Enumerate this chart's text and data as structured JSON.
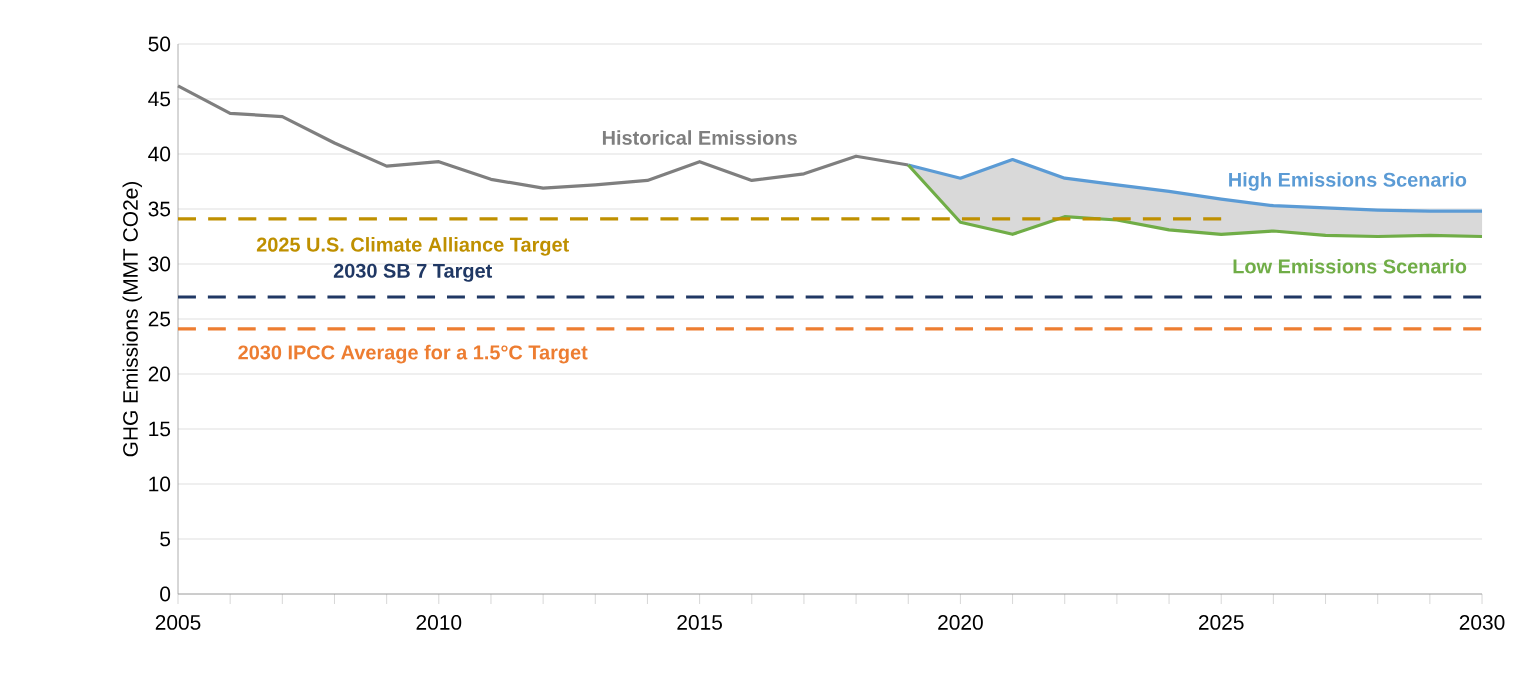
{
  "chart_data": {
    "type": "line",
    "ylabel": "GHG Emissions (MMT CO2e)",
    "xlim": [
      2005,
      2030
    ],
    "ylim": [
      0,
      50
    ],
    "xticks": [
      2005,
      {
        "value": 2006,
        "label": null
      },
      {
        "value": 2007,
        "label": null
      },
      {
        "value": 2008,
        "label": null
      },
      {
        "value": 2009,
        "label": null
      },
      2010,
      {
        "value": 2011,
        "label": null
      },
      {
        "value": 2012,
        "label": null
      },
      {
        "value": 2013,
        "label": null
      },
      {
        "value": 2014,
        "label": null
      },
      2015,
      {
        "value": 2016,
        "label": null
      },
      {
        "value": 2017,
        "label": null
      },
      {
        "value": 2018,
        "label": null
      },
      {
        "value": 2019,
        "label": null
      },
      2020,
      {
        "value": 2021,
        "label": null
      },
      {
        "value": 2022,
        "label": null
      },
      {
        "value": 2023,
        "label": null
      },
      {
        "value": 2024,
        "label": null
      },
      2025,
      {
        "value": 2026,
        "label": null
      },
      {
        "value": 2027,
        "label": null
      },
      {
        "value": 2028,
        "label": null
      },
      {
        "value": 2029,
        "label": null
      },
      2030
    ],
    "yticks": [
      0,
      5,
      10,
      15,
      20,
      25,
      30,
      35,
      40,
      45,
      50
    ],
    "grid": "y",
    "legend": false,
    "marker": "none",
    "series": [
      {
        "name": "Historical Emissions",
        "color": "#7f7f7f",
        "x": [
          2005,
          2006,
          2007,
          2008,
          2009,
          2010,
          2011,
          2012,
          2013,
          2014,
          2015,
          2016,
          2017,
          2018,
          2019
        ],
        "values": [
          46.2,
          43.7,
          43.4,
          41.0,
          38.9,
          39.3,
          37.7,
          36.9,
          37.2,
          37.6,
          39.3,
          37.6,
          38.2,
          39.8,
          39.0
        ]
      },
      {
        "name": "High Emissions Scenario",
        "color": "#5b9bd5",
        "x": [
          2019,
          2020,
          2021,
          2022,
          2023,
          2024,
          2025,
          2026,
          2027,
          2028,
          2029,
          2030
        ],
        "values": [
          39.0,
          37.8,
          39.5,
          37.8,
          37.2,
          36.6,
          35.9,
          35.3,
          35.1,
          34.9,
          34.8,
          34.8
        ],
        "lower": [
          39.0,
          33.8,
          32.7,
          34.3,
          34.0,
          33.1,
          32.7,
          33.0,
          32.6,
          32.5,
          32.6,
          32.5
        ],
        "upper": [
          39.0,
          37.8,
          39.5,
          37.8,
          37.2,
          36.6,
          35.9,
          35.3,
          35.1,
          34.9,
          34.8,
          34.8
        ]
      },
      {
        "name": "Low Emissions Scenario",
        "color": "#70ad47",
        "x": [
          2019,
          2020,
          2021,
          2022,
          2023,
          2024,
          2025,
          2026,
          2027,
          2028,
          2029,
          2030
        ],
        "values": [
          39.0,
          33.8,
          32.7,
          34.3,
          34.0,
          33.1,
          32.7,
          33.0,
          32.6,
          32.5,
          32.6,
          32.5
        ]
      },
      {
        "name": "2025 U.S. Climate Alliance Target",
        "color": "#bf9000",
        "line_style": "dashed",
        "x": [
          2005,
          2025
        ],
        "values": [
          34.1,
          34.1
        ]
      }
    ],
    "ref_lines": [
      {
        "axis": "y",
        "value": 27.0,
        "label": "2030 SB 7 Target",
        "color": "#203864",
        "line_style": "dashed"
      },
      {
        "axis": "y",
        "value": 24.1,
        "label": "2030 IPCC Average for a 1.5°C Target",
        "color": "#ed7d31",
        "line_style": "dashed"
      }
    ]
  }
}
